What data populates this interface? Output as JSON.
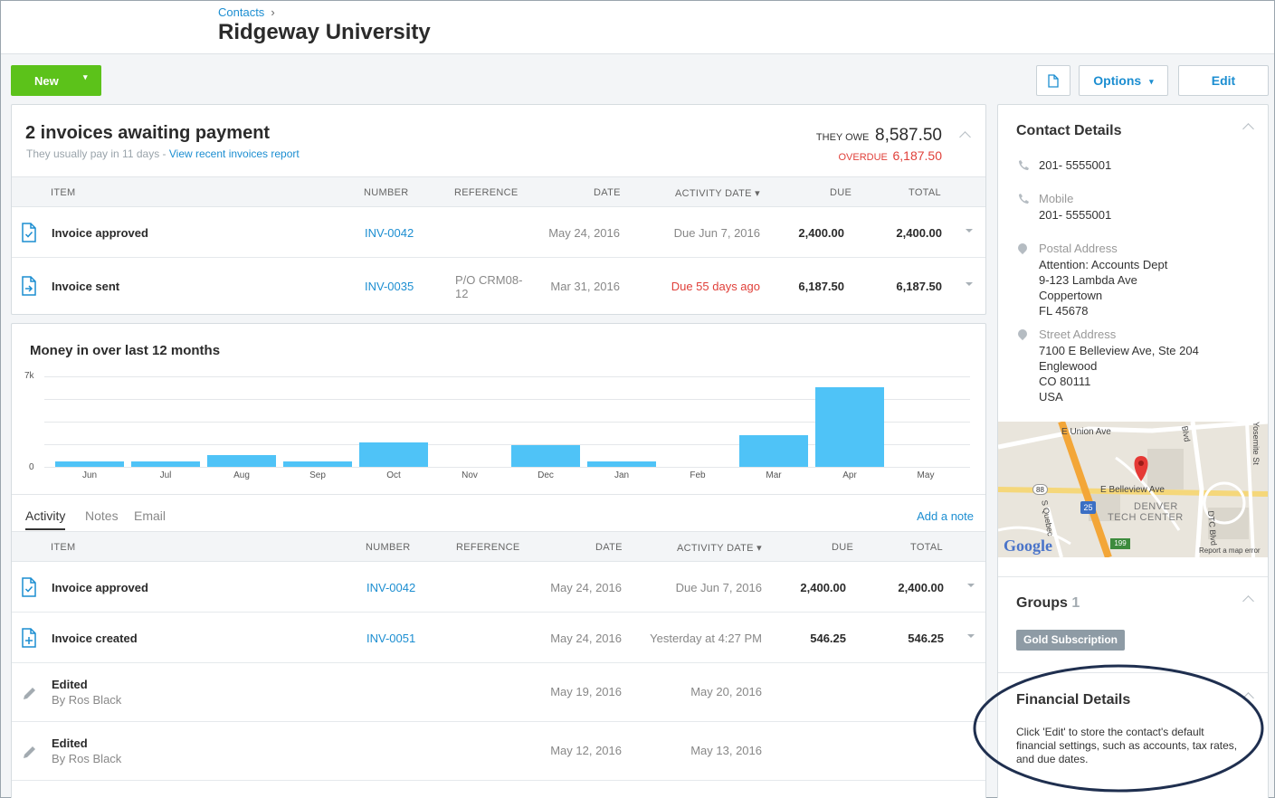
{
  "breadcrumb": {
    "parent": "Contacts",
    "sep": "›"
  },
  "page": {
    "title": "Ridgeway University"
  },
  "toolbar": {
    "new_label": "New",
    "new_dd": "▾",
    "options_label": "Options",
    "options_dd": "▾",
    "edit_label": "Edit"
  },
  "invoices": {
    "heading": "2 invoices awaiting payment",
    "subtitle": "They usually pay in 11 days",
    "subtitle_sep": " - ",
    "report_link": "View recent invoices report",
    "owe_label": "THEY OWE",
    "owe_value": "8,587.50",
    "overdue_label": "OVERDUE",
    "overdue_value": "6,187.50",
    "columns": {
      "item": "ITEM",
      "number": "NUMBER",
      "reference": "REFERENCE",
      "date": "DATE",
      "activity": "ACTIVITY DATE ▾",
      "due": "DUE",
      "total": "TOTAL"
    },
    "rows": [
      {
        "item": "Invoice approved",
        "number": "INV-0042",
        "reference": "",
        "date": "May 24, 2016",
        "activity": "Due Jun 7, 2016",
        "due": "2,400.00",
        "total": "2,400.00"
      },
      {
        "item": "Invoice sent",
        "number": "INV-0035",
        "reference": "P/O CRM08-12",
        "date": "Mar 31, 2016",
        "activity": "Due 55 days ago",
        "due": "6,187.50",
        "total": "6,187.50"
      }
    ]
  },
  "chart_data": {
    "type": "bar",
    "title": "Money in over last 12 months",
    "categories": [
      "Jun",
      "Jul",
      "Aug",
      "Sep",
      "Oct",
      "Nov",
      "Dec",
      "Jan",
      "Feb",
      "Mar",
      "Apr",
      "May"
    ],
    "values": [
      420,
      420,
      900,
      420,
      1900,
      0,
      1650,
      420,
      0,
      2450,
      6150,
      0
    ],
    "ylim": [
      0,
      7000
    ],
    "ytick_labels": [
      "7k",
      "0"
    ],
    "grid": true,
    "bar_color": "#4fc3f7"
  },
  "activity": {
    "tabs": [
      "Activity",
      "Notes",
      "Email"
    ],
    "add_note": "Add a note",
    "columns": {
      "item": "ITEM",
      "number": "NUMBER",
      "reference": "REFERENCE",
      "date": "DATE",
      "activity": "ACTIVITY DATE ▾",
      "due": "DUE",
      "total": "TOTAL"
    },
    "rows": [
      {
        "icon": "invoice-approved-icon",
        "item": "Invoice approved",
        "sub": "",
        "number": "INV-0042",
        "date": "May 24, 2016",
        "activity": "Due Jun 7, 2016",
        "due": "2,400.00",
        "total": "2,400.00"
      },
      {
        "icon": "invoice-created-icon",
        "item": "Invoice created",
        "sub": "",
        "number": "INV-0051",
        "date": "May 24, 2016",
        "activity": "Yesterday at 4:27 PM",
        "due": "546.25",
        "total": "546.25"
      },
      {
        "icon": "pencil-icon",
        "item": "Edited",
        "sub": "By Ros Black",
        "number": "",
        "date": "May 19, 2016",
        "activity": "May 20, 2016",
        "due": "",
        "total": ""
      },
      {
        "icon": "pencil-icon",
        "item": "Edited",
        "sub": "By Ros Black",
        "number": "",
        "date": "May 12, 2016",
        "activity": "May 13, 2016",
        "due": "",
        "total": ""
      }
    ]
  },
  "contact": {
    "heading": "Contact Details",
    "phone": "201- 5555001",
    "mobile_label": "Mobile",
    "mobile": "201- 5555001",
    "postal_label": "Postal Address",
    "postal": [
      "Attention: Accounts Dept",
      "9-123 Lambda Ave",
      "Coppertown",
      "FL 45678"
    ],
    "street_label": "Street Address",
    "street": [
      "7100 E Belleview Ave, Ste 204",
      "Englewood",
      "CO 80111",
      "USA"
    ]
  },
  "map": {
    "labels": {
      "union": "E Union Ave",
      "belleview": "E Belleview Ave",
      "quebec": "S Quebec",
      "dtc": "DTC Blvd",
      "denver": "DENVER",
      "tech": "TECH CENTER",
      "logo": "Google",
      "report": "Report a map error",
      "i25": "25",
      "r88": "88",
      "r199": "199",
      "blvd": "Blvd",
      "yosemite": "Yosemite St"
    }
  },
  "groups": {
    "heading": "Groups",
    "count": "1",
    "tag": "Gold Subscription"
  },
  "financial": {
    "heading": "Financial Details",
    "text": "Click 'Edit' to store the contact's default financial settings, such as accounts, tax rates, and due dates."
  },
  "colors": {
    "accent": "#1c8ed1",
    "new_button": "#5cc21a",
    "overdue": "#e0403a",
    "tag": "#8e9ba5"
  }
}
